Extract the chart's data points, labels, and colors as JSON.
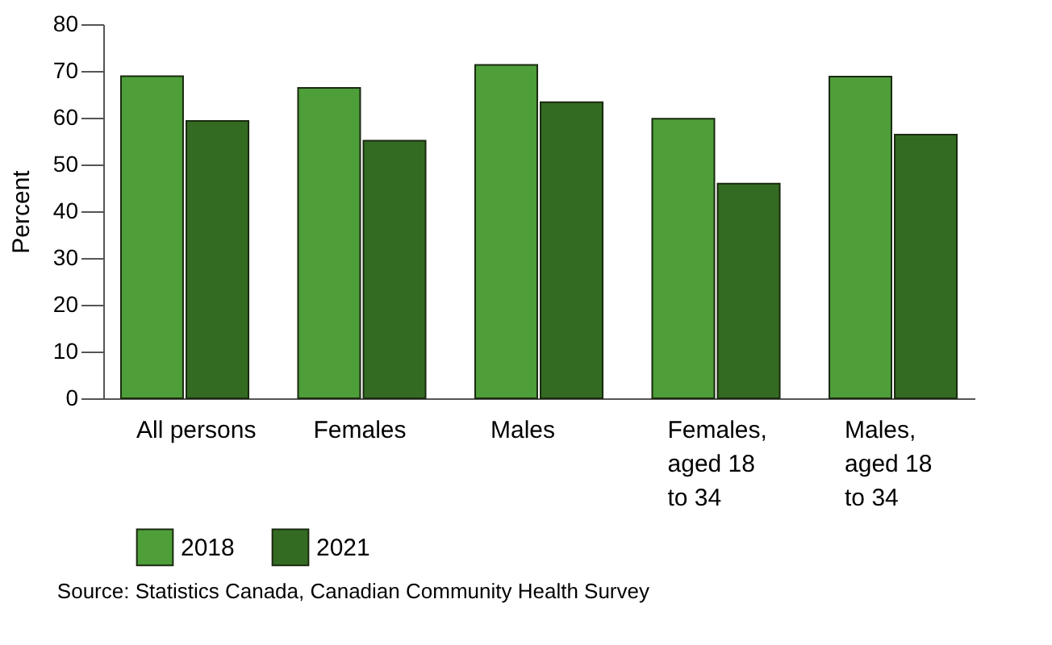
{
  "chart_data": {
    "type": "bar",
    "ylabel": "Percent",
    "categories": [
      "All persons",
      "Females",
      "Males",
      "Females, aged 18 to 34",
      "Males, aged 18 to 34"
    ],
    "series": [
      {
        "name": "2018",
        "color": "#4e9e3a",
        "values": [
          68.9,
          66.4,
          71.3,
          59.8,
          68.8
        ]
      },
      {
        "name": "2021",
        "color": "#336b22",
        "values": [
          59.3,
          55.1,
          63.3,
          45.9,
          56.4
        ]
      }
    ],
    "ylim": [
      0,
      80
    ],
    "yticks": [
      0,
      10,
      20,
      30,
      40,
      50,
      60,
      70,
      80
    ],
    "grid": false,
    "legend": "bottom left",
    "annotations": [
      "Source: Statistics Canada, Canadian Community Health Survey"
    ]
  }
}
